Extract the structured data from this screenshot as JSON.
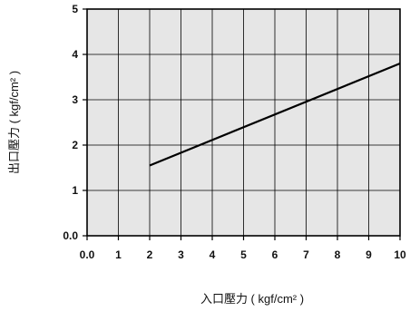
{
  "chart_data": {
    "type": "line",
    "title": "",
    "xlabel": "入口壓力 ( kgf/cm² )",
    "ylabel": "出口壓力 ( kgf/cm² )",
    "xlim": [
      0,
      10
    ],
    "ylim": [
      0,
      5
    ],
    "x_ticks": [
      "0.0",
      "1",
      "2",
      "3",
      "4",
      "5",
      "6",
      "7",
      "8",
      "9",
      "10"
    ],
    "y_ticks": [
      "0.0",
      "1",
      "2",
      "3",
      "4",
      "5"
    ],
    "grid": true,
    "series": [
      {
        "x": [
          2,
          10
        ],
        "y": [
          1.55,
          3.8
        ]
      }
    ],
    "colors": {
      "line": "#000000",
      "plot_bg": "#e6e6e6",
      "grid": "#000000"
    }
  }
}
